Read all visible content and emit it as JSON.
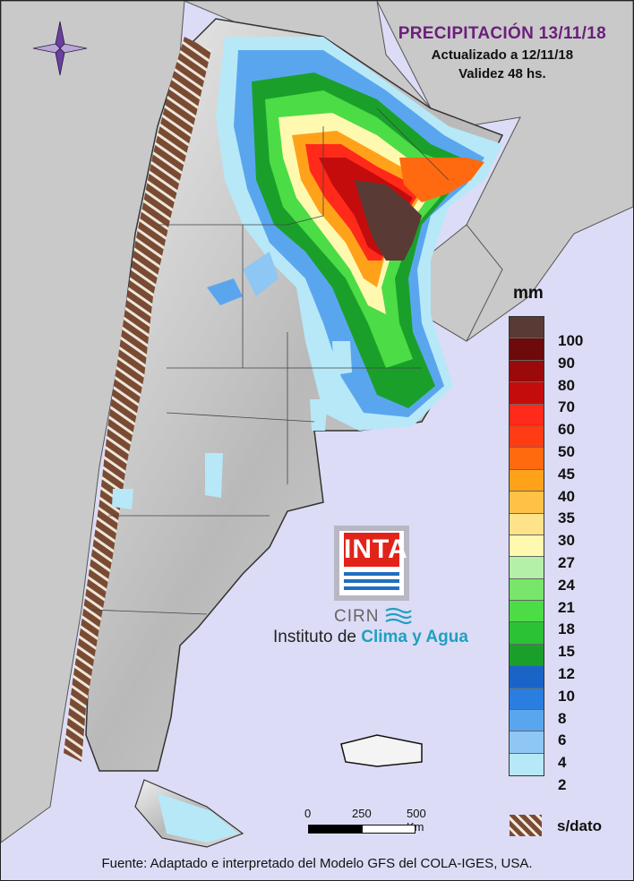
{
  "title": "PRECIPITACIÓN 13/11/18",
  "updated": "Actualizado a 12/11/18",
  "validity": "Validez 48 hs.",
  "legend": {
    "units": "mm",
    "classes": [
      {
        "label": "100",
        "color": "#5a3a34"
      },
      {
        "label": "90",
        "color": "#6e0a0a"
      },
      {
        "label": "80",
        "color": "#9b0a0a"
      },
      {
        "label": "70",
        "color": "#c40c0c"
      },
      {
        "label": "60",
        "color": "#ff2a1a"
      },
      {
        "label": "50",
        "color": "#ff3c14"
      },
      {
        "label": "45",
        "color": "#ff6a10"
      },
      {
        "label": "40",
        "color": "#ffa21a"
      },
      {
        "label": "35",
        "color": "#ffc246"
      },
      {
        "label": "30",
        "color": "#ffe38a"
      },
      {
        "label": "27",
        "color": "#fff9b0"
      },
      {
        "label": "24",
        "color": "#b4f0a8"
      },
      {
        "label": "21",
        "color": "#78e66a"
      },
      {
        "label": "18",
        "color": "#4cdc46"
      },
      {
        "label": "15",
        "color": "#2cc236"
      },
      {
        "label": "12",
        "color": "#1aa02a"
      },
      {
        "label": "10",
        "color": "#1a64c8"
      },
      {
        "label": "8",
        "color": "#2a7ee0"
      },
      {
        "label": "6",
        "color": "#5aa6ee"
      },
      {
        "label": "4",
        "color": "#8ec6f4"
      },
      {
        "label": "2",
        "color": "#b6e8f8"
      }
    ],
    "nodata_label": "s/dato"
  },
  "scale": {
    "ticks": [
      "0",
      "250",
      "500 Km"
    ]
  },
  "footer": "Fuente: Adaptado e interpretado del Modelo GFS del COLA-IGES, USA.",
  "logo": {
    "text": "INTA",
    "sub": "CIRN",
    "institute": "Instituto de",
    "institute_accent": "Clima y Agua"
  }
}
